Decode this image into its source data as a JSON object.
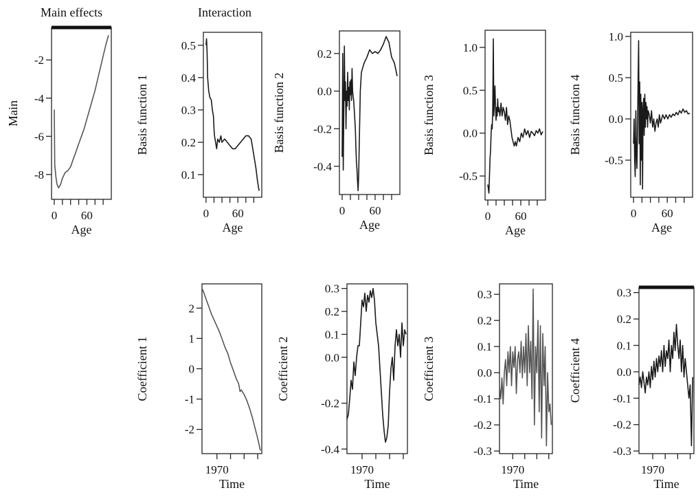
{
  "headers": {
    "main_effects": "Main effects",
    "interaction": "Interaction"
  },
  "chart_data": [
    {
      "id": "main",
      "type": "line",
      "ylabel": "Main",
      "xlabel": "Age",
      "xlim": [
        -5,
        105
      ],
      "ylim": [
        -9.3,
        -0.3
      ],
      "yticks": [
        -8,
        -6,
        -4,
        -2
      ],
      "xticks": [
        0,
        15,
        30,
        45,
        60,
        75,
        90
      ],
      "xticklabels": [
        {
          "v": 0,
          "t": "0"
        },
        {
          "v": 60,
          "t": "60"
        }
      ],
      "topbar": true,
      "series": [
        {
          "x": [
            0,
            1,
            2,
            3,
            5,
            8,
            10,
            12,
            15,
            20,
            25,
            30,
            35,
            40,
            45,
            50,
            55,
            60,
            65,
            70,
            75,
            80,
            85,
            90,
            95,
            100
          ],
          "y": [
            -4.6,
            -7.5,
            -7.8,
            -8.1,
            -8.5,
            -8.7,
            -8.6,
            -8.5,
            -8.2,
            -7.9,
            -7.8,
            -7.6,
            -7.2,
            -6.8,
            -6.4,
            -6.0,
            -5.6,
            -5.1,
            -4.6,
            -4.1,
            -3.6,
            -3.0,
            -2.4,
            -1.8,
            -1.2,
            -0.7
          ]
        }
      ]
    },
    {
      "id": "basis1",
      "type": "line",
      "ylabel": "Basis function 1",
      "xlabel": "Age",
      "xlim": [
        -5,
        105
      ],
      "ylim": [
        0.03,
        0.54
      ],
      "yticks": [
        0.1,
        0.2,
        0.3,
        0.4,
        0.5
      ],
      "yticklabels": [
        "0.1",
        "0.2",
        "0.3",
        "0.4",
        "0.5"
      ],
      "xticks": [
        0,
        15,
        30,
        45,
        60,
        75,
        90
      ],
      "xticklabels": [
        {
          "v": 0,
          "t": "0"
        },
        {
          "v": 60,
          "t": "60"
        }
      ],
      "series": [
        {
          "x": [
            0,
            1,
            2,
            3,
            5,
            7,
            10,
            12,
            14,
            15,
            16,
            18,
            20,
            22,
            25,
            28,
            30,
            35,
            40,
            45,
            50,
            55,
            60,
            65,
            70,
            75,
            80,
            85,
            88,
            91,
            94,
            97,
            100
          ],
          "y": [
            0.5,
            0.52,
            0.48,
            0.4,
            0.36,
            0.34,
            0.33,
            0.3,
            0.28,
            0.24,
            0.22,
            0.2,
            0.18,
            0.21,
            0.2,
            0.22,
            0.2,
            0.21,
            0.2,
            0.19,
            0.18,
            0.18,
            0.19,
            0.2,
            0.21,
            0.22,
            0.22,
            0.21,
            0.18,
            0.15,
            0.12,
            0.08,
            0.05
          ]
        }
      ]
    },
    {
      "id": "basis2",
      "type": "line",
      "ylabel": "Basis function 2",
      "xlabel": "Age",
      "xlim": [
        -5,
        105
      ],
      "ylim": [
        -0.55,
        0.32
      ],
      "yticks": [
        -0.4,
        -0.2,
        0.0,
        0.2
      ],
      "yticklabels": [
        "-0.4",
        "-0.2",
        "0.0",
        "0.2"
      ],
      "xticks": [
        0,
        15,
        30,
        45,
        60,
        75,
        90
      ],
      "xticklabels": [
        {
          "v": 0,
          "t": "0"
        },
        {
          "v": 60,
          "t": "60"
        }
      ],
      "series": [
        {
          "x": [
            0,
            1,
            2,
            3,
            4,
            5,
            6,
            7,
            8,
            9,
            10,
            11,
            12,
            13,
            14,
            15,
            16,
            17,
            18,
            19,
            20,
            21,
            22,
            23,
            24,
            25,
            26,
            27,
            28,
            29,
            30,
            31,
            32,
            33,
            34,
            35,
            37,
            40,
            45,
            50,
            55,
            60,
            65,
            70,
            75,
            80,
            85,
            90,
            95,
            100
          ],
          "y": [
            -0.35,
            0.2,
            -0.42,
            -0.1,
            0.24,
            -0.05,
            0.05,
            -0.2,
            0.0,
            -0.08,
            0.1,
            -0.05,
            0.02,
            -0.1,
            0.05,
            -0.02,
            0.06,
            -0.05,
            0.12,
            0.0,
            -0.03,
            -0.05,
            -0.1,
            -0.15,
            -0.2,
            -0.3,
            -0.38,
            -0.42,
            -0.48,
            -0.53,
            -0.45,
            -0.3,
            -0.15,
            0.0,
            0.05,
            0.1,
            0.12,
            0.15,
            0.18,
            0.22,
            0.2,
            0.21,
            0.2,
            0.22,
            0.25,
            0.29,
            0.26,
            0.18,
            0.15,
            0.08
          ]
        }
      ]
    },
    {
      "id": "basis3",
      "type": "line",
      "ylabel": "Basis function 3",
      "xlabel": "Age",
      "xlim": [
        -5,
        105
      ],
      "ylim": [
        -0.78,
        1.2
      ],
      "yticks": [
        -0.5,
        0.0,
        0.5,
        1.0
      ],
      "yticklabels": [
        "-0.5",
        "0.0",
        "0.5",
        "1.0"
      ],
      "xticks": [
        0,
        15,
        30,
        45,
        60,
        75,
        90
      ],
      "xticklabels": [
        {
          "v": 0,
          "t": "0"
        },
        {
          "v": 60,
          "t": "60"
        }
      ],
      "series": [
        {
          "x": [
            0,
            1,
            2,
            3,
            4,
            5,
            6,
            7,
            8,
            9,
            10,
            11,
            12,
            13,
            14,
            15,
            16,
            17,
            18,
            19,
            20,
            22,
            24,
            26,
            28,
            30,
            32,
            34,
            36,
            38,
            40,
            42,
            44,
            46,
            48,
            50,
            52,
            55,
            58,
            61,
            64,
            67,
            70,
            73,
            76,
            79,
            82,
            85,
            88,
            91,
            94,
            97,
            100
          ],
          "y": [
            -0.6,
            -0.65,
            -0.7,
            -0.5,
            -0.3,
            -0.2,
            0.0,
            0.1,
            0.05,
            0.3,
            1.1,
            0.2,
            0.4,
            0.55,
            0.3,
            0.15,
            0.3,
            0.2,
            0.4,
            0.25,
            0.3,
            0.2,
            0.35,
            0.2,
            0.3,
            0.25,
            0.15,
            0.3,
            0.1,
            0.2,
            0.15,
            0.05,
            -0.05,
            -0.1,
            -0.15,
            -0.1,
            -0.15,
            -0.05,
            -0.1,
            0.0,
            -0.05,
            0.05,
            -0.02,
            0.03,
            -0.05,
            0.02,
            0.0,
            -0.03,
            0.03,
            0.0,
            0.05,
            -0.02,
            0.02
          ]
        }
      ]
    },
    {
      "id": "basis4",
      "type": "line",
      "ylabel": "Basis function 4",
      "xlabel": "Age",
      "xlim": [
        -5,
        105
      ],
      "ylim": [
        -0.95,
        1.05
      ],
      "yticks": [
        -0.5,
        0.0,
        0.5,
        1.0
      ],
      "yticklabels": [
        "-0.5",
        "0.0",
        "0.5",
        "1.0"
      ],
      "xticks": [
        0,
        15,
        30,
        45,
        60,
        75,
        90
      ],
      "xticklabels": [
        {
          "v": 0,
          "t": "0"
        },
        {
          "v": 60,
          "t": "60"
        }
      ],
      "series": [
        {
          "x": [
            0,
            1,
            2,
            3,
            4,
            5,
            6,
            7,
            8,
            9,
            10,
            11,
            12,
            13,
            14,
            15,
            16,
            17,
            18,
            19,
            20,
            21,
            22,
            23,
            24,
            25,
            26,
            28,
            30,
            32,
            34,
            36,
            38,
            40,
            42,
            44,
            46,
            48,
            50,
            52,
            55,
            58,
            61,
            64,
            67,
            70,
            73,
            76,
            79,
            82,
            85,
            88,
            91,
            94,
            97,
            100
          ],
          "y": [
            -0.3,
            0.0,
            -0.5,
            -0.7,
            0.1,
            -0.4,
            -0.6,
            -0.2,
            0.4,
            0.95,
            -0.3,
            0.45,
            -0.8,
            0.3,
            -0.5,
            0.2,
            -0.85,
            0.1,
            0.25,
            -0.2,
            0.3,
            -0.1,
            0.2,
            0.0,
            0.15,
            -0.1,
            0.1,
            0.05,
            -0.05,
            0.1,
            -0.1,
            0.0,
            -0.15,
            -0.05,
            0.0,
            -0.1,
            0.05,
            -0.05,
            0.0,
            0.05,
            0.0,
            0.05,
            0.0,
            0.05,
            0.02,
            0.06,
            0.04,
            0.08,
            0.05,
            0.1,
            0.07,
            0.12,
            0.08,
            0.1,
            0.06,
            0.07
          ]
        }
      ]
    },
    {
      "id": "coef1",
      "type": "line",
      "ylabel": "Coefficient 1",
      "xlabel": "Time",
      "xlim": [
        1959,
        2003
      ],
      "ylim": [
        -2.8,
        2.8
      ],
      "yticks": [
        -2,
        -1,
        0,
        1,
        2
      ],
      "yticklabels": [
        "-2",
        "-1",
        "0",
        "1",
        "2"
      ],
      "xticks": [
        1970,
        1980,
        1990,
        2000
      ],
      "xticklabels": [
        {
          "v": 1970,
          "t": "1970"
        }
      ],
      "series": [
        {
          "x": [
            1959,
            1960,
            1962,
            1964,
            1966,
            1968,
            1970,
            1972,
            1974,
            1976,
            1978,
            1980,
            1982,
            1984,
            1986,
            1987,
            1988,
            1990,
            1992,
            1994,
            1996,
            1998,
            2000,
            2002
          ],
          "y": [
            2.65,
            2.55,
            2.3,
            2.05,
            1.8,
            1.6,
            1.4,
            1.2,
            0.95,
            0.7,
            0.5,
            0.2,
            -0.05,
            -0.3,
            -0.5,
            -0.75,
            -0.7,
            -0.85,
            -1.05,
            -1.3,
            -1.6,
            -1.95,
            -2.3,
            -2.7
          ]
        }
      ]
    },
    {
      "id": "coef2",
      "type": "line",
      "ylabel": "Coefficient 2",
      "xlabel": "Time",
      "xlim": [
        1959,
        2003
      ],
      "ylim": [
        -0.42,
        0.32
      ],
      "yticks": [
        -0.4,
        -0.2,
        0.0,
        0.1,
        0.2,
        0.3
      ],
      "yticklabels": [
        "-0.4",
        "-0.2",
        "0.0",
        "0.1",
        "0.2",
        "0.3"
      ],
      "xticks": [
        1970,
        1980,
        1990,
        2000
      ],
      "xticklabels": [
        {
          "v": 1970,
          "t": "1970"
        }
      ],
      "series": [
        {
          "x": [
            1959,
            1960,
            1961,
            1962,
            1963,
            1964,
            1965,
            1966,
            1967,
            1968,
            1969,
            1970,
            1971,
            1972,
            1973,
            1974,
            1975,
            1976,
            1977,
            1978,
            1979,
            1980,
            1981,
            1982,
            1983,
            1984,
            1985,
            1986,
            1987,
            1988,
            1989,
            1990,
            1991,
            1992,
            1993,
            1994,
            1995,
            1996,
            1997,
            1998,
            1999,
            2000,
            2001,
            2002
          ],
          "y": [
            -0.27,
            -0.25,
            -0.18,
            -0.1,
            -0.14,
            -0.02,
            -0.08,
            0.0,
            0.05,
            0.05,
            0.15,
            0.25,
            0.22,
            0.28,
            0.2,
            0.27,
            0.24,
            0.29,
            0.26,
            0.3,
            0.25,
            0.15,
            0.1,
            0.05,
            -0.05,
            -0.15,
            -0.25,
            -0.32,
            -0.37,
            -0.35,
            -0.3,
            -0.15,
            -0.05,
            0.0,
            -0.1,
            0.05,
            0.12,
            0.05,
            0.1,
            0.0,
            0.15,
            0.05,
            0.12,
            0.1
          ]
        }
      ]
    },
    {
      "id": "coef3",
      "type": "line",
      "ylabel": "Coefficient 3",
      "xlabel": "Time",
      "xlim": [
        1959,
        2003
      ],
      "ylim": [
        -0.31,
        0.34
      ],
      "yticks": [
        -0.3,
        -0.2,
        -0.1,
        0.0,
        0.1,
        0.2,
        0.3
      ],
      "yticklabels": [
        "-0.3",
        "-0.2",
        "-0.1",
        "0.0",
        "0.1",
        "0.2",
        "0.3"
      ],
      "xticks": [
        1970,
        1980,
        1990,
        2000
      ],
      "xticklabels": [
        {
          "v": 1970,
          "t": "1970"
        }
      ],
      "series": [
        {
          "x": [
            1959,
            1960,
            1961,
            1962,
            1963,
            1964,
            1965,
            1966,
            1967,
            1968,
            1969,
            1970,
            1971,
            1972,
            1973,
            1974,
            1975,
            1976,
            1977,
            1978,
            1979,
            1980,
            1981,
            1982,
            1983,
            1984,
            1985,
            1986,
            1987,
            1988,
            1989,
            1990,
            1991,
            1992,
            1993,
            1994,
            1995,
            1996,
            1997,
            1998,
            1999,
            2000,
            2001,
            2002
          ],
          "y": [
            -0.05,
            -0.1,
            -0.02,
            -0.12,
            0.0,
            0.05,
            -0.05,
            0.08,
            0.0,
            0.1,
            -0.05,
            0.08,
            0.02,
            0.1,
            -0.08,
            0.05,
            0.08,
            0.0,
            0.12,
            -0.02,
            0.1,
            0.0,
            0.15,
            -0.05,
            0.18,
            0.0,
            0.12,
            -0.1,
            0.32,
            -0.2,
            0.1,
            0.0,
            0.2,
            -0.15,
            0.18,
            -0.25,
            0.15,
            -0.05,
            0.1,
            -0.28,
            0.0,
            -0.15,
            -0.12,
            -0.2
          ]
        }
      ]
    },
    {
      "id": "coef4",
      "type": "line",
      "ylabel": "Coefficient 4",
      "xlabel": "Time",
      "xlim": [
        1959,
        2003
      ],
      "ylim": [
        -0.31,
        0.32
      ],
      "yticks": [
        -0.3,
        -0.2,
        -0.1,
        0.0,
        0.1,
        0.2,
        0.3
      ],
      "yticklabels": [
        "-0.3",
        "-0.2",
        "-0.1",
        "0.0",
        "0.1",
        "0.2",
        "0.3"
      ],
      "xticks": [
        1970,
        1980,
        1990,
        2000
      ],
      "xticklabels": [
        {
          "v": 1970,
          "t": "1970"
        }
      ],
      "topbar": true,
      "series": [
        {
          "x": [
            1959,
            1960,
            1961,
            1962,
            1963,
            1964,
            1965,
            1966,
            1967,
            1968,
            1969,
            1970,
            1971,
            1972,
            1973,
            1974,
            1975,
            1976,
            1977,
            1978,
            1979,
            1980,
            1981,
            1982,
            1983,
            1984,
            1985,
            1986,
            1987,
            1988,
            1989,
            1990,
            1991,
            1992,
            1993,
            1994,
            1995,
            1996,
            1997,
            1998,
            1999,
            2000,
            2001,
            2002
          ],
          "y": [
            -0.05,
            -0.02,
            -0.06,
            0.0,
            -0.04,
            -0.08,
            -0.02,
            -0.05,
            0.0,
            -0.06,
            0.02,
            -0.03,
            0.04,
            -0.02,
            0.05,
            0.0,
            0.06,
            0.02,
            0.08,
            0.0,
            0.1,
            0.02,
            0.08,
            0.05,
            0.12,
            0.0,
            0.1,
            0.05,
            0.15,
            0.08,
            0.18,
            0.1,
            0.05,
            0.12,
            0.0,
            0.1,
            -0.02,
            0.05,
            0.0,
            -0.05,
            -0.1,
            -0.05,
            -0.28,
            -0.02
          ]
        }
      ]
    }
  ]
}
